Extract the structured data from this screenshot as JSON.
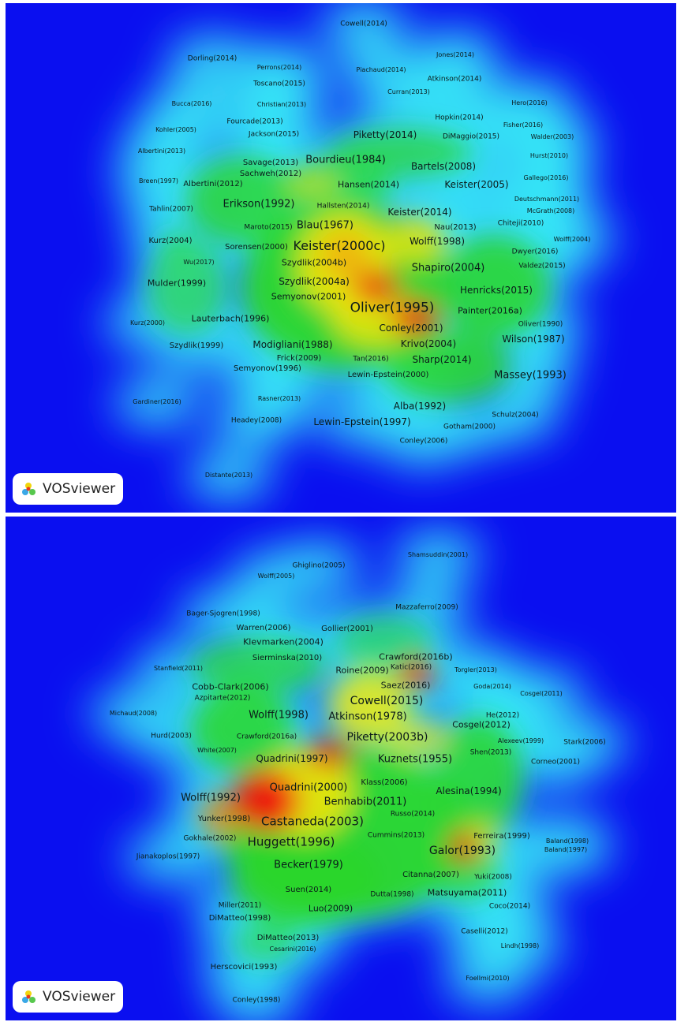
{
  "brand": {
    "name": "VOSviewer",
    "icon": "vosviewer-logo-icon"
  },
  "colors": {
    "background": "#0a0ff0",
    "cyan": "#36e6f6",
    "green": "#2bd62b",
    "yellow": "#f1e60c",
    "red": "#f0140a"
  },
  "panels": [
    {
      "id": "top",
      "blobs": [
        [
          430,
          360,
          260,
          210,
          "#2bd62b",
          0.95
        ],
        [
          300,
          250,
          140,
          110,
          "#2bd62b",
          0.8
        ],
        [
          620,
          360,
          140,
          130,
          "#2bd62b",
          0.85
        ],
        [
          500,
          190,
          180,
          60,
          "#2bd62b",
          0.7
        ],
        [
          560,
          460,
          160,
          90,
          "#2bd62b",
          0.85
        ],
        [
          230,
          360,
          100,
          120,
          "#2bd62b",
          0.6
        ],
        [
          420,
          230,
          140,
          70,
          "#2bd62b",
          0.7
        ],
        [
          430,
          330,
          120,
          130,
          "#f1e60c",
          0.9
        ],
        [
          520,
          300,
          80,
          60,
          "#f1e60c",
          0.8
        ],
        [
          470,
          400,
          110,
          70,
          "#f1e60c",
          0.85
        ],
        [
          390,
          230,
          70,
          35,
          "#f1e60c",
          0.6
        ],
        [
          520,
          400,
          60,
          45,
          "#f0140a",
          0.85
        ],
        [
          470,
          360,
          60,
          45,
          "#f0140a",
          0.7
        ],
        [
          430,
          320,
          60,
          60,
          "#ff8a0a",
          0.5
        ],
        [
          215,
          305,
          40,
          40,
          "#2bd62b",
          0.4
        ]
      ],
      "labels": [
        [
          "Cowell(2014)",
          454,
          27,
          9
        ],
        [
          "Jones(2014)",
          570,
          66,
          8
        ],
        [
          "Dorling(2014)",
          262,
          71,
          9
        ],
        [
          "Perrons(2014)",
          347,
          82,
          8
        ],
        [
          "Piachaud(2014)",
          476,
          85,
          8
        ],
        [
          "Atkinson(2014)",
          569,
          97,
          9
        ],
        [
          "Toscano(2015)",
          347,
          103,
          9
        ],
        [
          "Curran(2013)",
          511,
          113,
          8
        ],
        [
          "Bucca(2016)",
          236,
          128,
          8
        ],
        [
          "Christian(2013)",
          350,
          129,
          8
        ],
        [
          "Hero(2016)",
          664,
          127,
          8
        ],
        [
          "Hopkin(2014)",
          575,
          146,
          9
        ],
        [
          "Fourcade(2013)",
          316,
          151,
          9
        ],
        [
          "Fisher(2016)",
          656,
          155,
          8
        ],
        [
          "Kohler(2005)",
          216,
          161,
          8
        ],
        [
          "Jackson(2015)",
          340,
          167,
          9
        ],
        [
          "Piketty(2014)",
          481,
          167,
          12
        ],
        [
          "DiMaggio(2015)",
          590,
          170,
          9
        ],
        [
          "Walder(2003)",
          693,
          170,
          8
        ],
        [
          "Albertini(2013)",
          198,
          188,
          8
        ],
        [
          "Savage(2013)",
          336,
          203,
          10
        ],
        [
          "Bourdieu(1984)",
          431,
          199,
          13
        ],
        [
          "Hurst(2010)",
          689,
          194,
          8
        ],
        [
          "Bartels(2008)",
          555,
          207,
          12
        ],
        [
          "Sachweh(2012)",
          336,
          217,
          10
        ],
        [
          "Gallego(2016)",
          685,
          222,
          8
        ],
        [
          "Breen(1997)",
          194,
          226,
          8
        ],
        [
          "Albertini(2012)",
          263,
          230,
          10
        ],
        [
          "Hansen(2014)",
          460,
          230,
          11
        ],
        [
          "Keister(2005)",
          597,
          230,
          12
        ],
        [
          "Deutschmann(2011)",
          686,
          249,
          8
        ],
        [
          "Erikson(1992)",
          321,
          255,
          13
        ],
        [
          "Hallsten(2014)",
          428,
          258,
          9
        ],
        [
          "Keister(2014)",
          525,
          265,
          12
        ],
        [
          "Tahlin(2007)",
          210,
          262,
          9
        ],
        [
          "McGrath(2008)",
          691,
          264,
          8
        ],
        [
          "Blau(1967)",
          405,
          282,
          13
        ],
        [
          "Chiteji(2010)",
          653,
          280,
          9
        ],
        [
          "Nau(2013)",
          570,
          285,
          10
        ],
        [
          "Maroto(2015)",
          333,
          285,
          9
        ],
        [
          "Wolff(1998)",
          547,
          302,
          12
        ],
        [
          "Kurz(2004)",
          209,
          302,
          10
        ],
        [
          "Wolff(2004)",
          718,
          300,
          8
        ],
        [
          "Keister(2000c)",
          423,
          308,
          16
        ],
        [
          "Sorensen(2000)",
          318,
          310,
          10
        ],
        [
          "Dwyer(2016)",
          671,
          316,
          9
        ],
        [
          "Wu(2017)",
          245,
          329,
          8
        ],
        [
          "Szydlik(2004b)",
          391,
          329,
          11
        ],
        [
          "Valdez(2015)",
          680,
          334,
          9
        ],
        [
          "Shapiro(2004)",
          561,
          336,
          13
        ],
        [
          "Mulder(1999)",
          217,
          355,
          11
        ],
        [
          "Szydlik(2004a)",
          391,
          353,
          12
        ],
        [
          "Henricks(2015)",
          622,
          364,
          12
        ],
        [
          "Semyonov(2001)",
          384,
          372,
          11
        ],
        [
          "Oliver(1995)",
          490,
          387,
          17
        ],
        [
          "Painter(2016a)",
          614,
          390,
          11
        ],
        [
          "Lauterbach(1996)",
          285,
          400,
          11
        ],
        [
          "Kurz(2000)",
          180,
          406,
          8
        ],
        [
          "Oliver(1990)",
          678,
          408,
          9
        ],
        [
          "Conley(2001)",
          514,
          412,
          12
        ],
        [
          "Szydlik(1999)",
          242,
          435,
          10
        ],
        [
          "Modigliani(1988)",
          364,
          433,
          12
        ],
        [
          "Krivo(2004)",
          536,
          432,
          12
        ],
        [
          "Wilson(1987)",
          669,
          426,
          12
        ],
        [
          "Frick(2009)",
          372,
          451,
          10
        ],
        [
          "Tan(2016)",
          463,
          452,
          9
        ],
        [
          "Sharp(2014)",
          553,
          452,
          12
        ],
        [
          "Semyonov(1996)",
          332,
          464,
          10
        ],
        [
          "Lewin-Epstein(2000)",
          485,
          472,
          10
        ],
        [
          "Massey(1993)",
          665,
          472,
          13
        ],
        [
          "Rasner(2013)",
          347,
          502,
          8
        ],
        [
          "Gardiner(2016)",
          192,
          506,
          8
        ],
        [
          "Alba(1992)",
          525,
          511,
          12
        ],
        [
          "Schulz(2004)",
          646,
          523,
          9
        ],
        [
          "Headey(2008)",
          318,
          530,
          9
        ],
        [
          "Lewin-Epstein(1997)",
          452,
          531,
          12
        ],
        [
          "Gotham(2000)",
          588,
          538,
          9
        ],
        [
          "Conley(2006)",
          530,
          556,
          9
        ],
        [
          "Distante(2013)",
          283,
          599,
          8
        ]
      ]
    },
    {
      "id": "bottom",
      "blobs": [
        [
          430,
          400,
          310,
          220,
          "#2bd62b",
          0.95
        ],
        [
          320,
          190,
          170,
          70,
          "#2bd62b",
          0.7
        ],
        [
          480,
          160,
          120,
          70,
          "#2bd62b",
          0.55
        ],
        [
          300,
          270,
          130,
          110,
          "#2bd62b",
          0.85
        ],
        [
          600,
          330,
          110,
          150,
          "#2bd62b",
          0.85
        ],
        [
          380,
          460,
          190,
          120,
          "#2bd62b",
          0.9
        ],
        [
          330,
          540,
          80,
          50,
          "#2bd62b",
          0.6
        ],
        [
          580,
          450,
          90,
          70,
          "#2bd62b",
          0.75
        ],
        [
          380,
          350,
          120,
          110,
          "#f1e60c",
          0.9
        ],
        [
          460,
          240,
          100,
          90,
          "#f1e60c",
          0.85
        ],
        [
          520,
          280,
          80,
          50,
          "#f1e60c",
          0.7
        ],
        [
          600,
          410,
          50,
          45,
          "#f1e60c",
          0.7
        ],
        [
          330,
          360,
          85,
          80,
          "#f0140a",
          0.95
        ],
        [
          410,
          300,
          60,
          40,
          "#f0140a",
          0.75
        ],
        [
          520,
          200,
          50,
          40,
          "#f0140a",
          0.85
        ],
        [
          580,
          420,
          40,
          40,
          "#f0140a",
          0.8
        ],
        [
          270,
          380,
          50,
          60,
          "#ff7a08",
          0.7
        ]
      ],
      "labels": [
        [
          "Shamsuddin(2001)",
          548,
          49,
          8
        ],
        [
          "Ghiglino(2005)",
          397,
          63,
          9
        ],
        [
          "Wolff(2005)",
          343,
          76,
          8
        ],
        [
          "Mazzaferro(2009)",
          534,
          116,
          9
        ],
        [
          "Bager-Sjogren(1998)",
          276,
          124,
          9
        ],
        [
          "Warren(2006)",
          327,
          142,
          10
        ],
        [
          "Gollier(2001)",
          433,
          143,
          10
        ],
        [
          "Klevmarken(2004)",
          352,
          159,
          11
        ],
        [
          "Sierminska(2010)",
          357,
          180,
          10
        ],
        [
          "Crawford(2016b)",
          520,
          178,
          11
        ],
        [
          "Stanfield(2011)",
          219,
          193,
          8
        ],
        [
          "Roine(2009)",
          452,
          195,
          11
        ],
        [
          "Katic(2016)",
          514,
          192,
          9
        ],
        [
          "Torgler(2013)",
          596,
          195,
          8
        ],
        [
          "Saez(2016)",
          507,
          214,
          11
        ],
        [
          "Cobb-Clark(2006)",
          285,
          216,
          11
        ],
        [
          "Goda(2014)",
          617,
          216,
          8
        ],
        [
          "Cosgel(2011)",
          679,
          225,
          8
        ],
        [
          "Azpitarte(2012)",
          275,
          231,
          9
        ],
        [
          "Cowell(2015)",
          483,
          234,
          14
        ],
        [
          "Michaud(2008)",
          162,
          250,
          8
        ],
        [
          "Wolff(1998)",
          346,
          252,
          13
        ],
        [
          "Atkinson(1978)",
          459,
          254,
          13
        ],
        [
          "He(2012)",
          630,
          253,
          9
        ],
        [
          "Cosgel(2012)",
          603,
          264,
          11
        ],
        [
          "Hurd(2003)",
          210,
          279,
          9
        ],
        [
          "Piketty(2003b)",
          484,
          280,
          14
        ],
        [
          "Crawford(2016a)",
          331,
          280,
          9
        ],
        [
          "Alexeev(1999)",
          653,
          285,
          8
        ],
        [
          "Stark(2006)",
          734,
          287,
          9
        ],
        [
          "White(2007)",
          268,
          297,
          8
        ],
        [
          "Shen(2013)",
          615,
          300,
          9
        ],
        [
          "Quadrini(1997)",
          363,
          307,
          12
        ],
        [
          "Kuznets(1955)",
          519,
          308,
          13
        ],
        [
          "Corneo(2001)",
          697,
          312,
          9
        ],
        [
          "Quadrini(2000)",
          384,
          344,
          13
        ],
        [
          "Klass(2006)",
          480,
          338,
          10
        ],
        [
          "Alesina(1994)",
          587,
          348,
          12
        ],
        [
          "Wolff(1992)",
          260,
          357,
          13
        ],
        [
          "Benhabib(2011)",
          456,
          362,
          13
        ],
        [
          "Yunker(1998)",
          277,
          384,
          10
        ],
        [
          "Castaneda(2003)",
          389,
          387,
          15
        ],
        [
          "Russo(2014)",
          516,
          378,
          9
        ],
        [
          "Cummins(2013)",
          495,
          405,
          9
        ],
        [
          "Ferreira(1999)",
          629,
          406,
          10
        ],
        [
          "Gokhale(2002)",
          259,
          409,
          9
        ],
        [
          "Huggett(1996)",
          362,
          413,
          15
        ],
        [
          "Baland(1998)",
          712,
          412,
          8
        ],
        [
          "Baland(1997)",
          710,
          423,
          8
        ],
        [
          "Galor(1993)",
          579,
          424,
          14
        ],
        [
          "Jianakoplos(1997)",
          206,
          432,
          9
        ],
        [
          "Becker(1979)",
          384,
          442,
          13
        ],
        [
          "Citanna(2007)",
          539,
          455,
          10
        ],
        [
          "Yuki(2008)",
          618,
          458,
          9
        ],
        [
          "Suen(2014)",
          384,
          474,
          10
        ],
        [
          "Dutta(1998)",
          490,
          480,
          9
        ],
        [
          "Matsuyama(2011)",
          585,
          477,
          11
        ],
        [
          "Miller(2011)",
          297,
          494,
          9
        ],
        [
          "Luo(2009)",
          412,
          497,
          11
        ],
        [
          "Coco(2014)",
          639,
          495,
          9
        ],
        [
          "DiMatteo(1998)",
          297,
          510,
          10
        ],
        [
          "Caselli(2012)",
          607,
          527,
          9
        ],
        [
          "DiMatteo(2013)",
          358,
          535,
          10
        ],
        [
          "Cesarini(2016)",
          364,
          549,
          8
        ],
        [
          "Lindh(1998)",
          652,
          545,
          8
        ],
        [
          "Herscovici(1993)",
          302,
          572,
          10
        ],
        [
          "Foellmi(2010)",
          611,
          586,
          8
        ],
        [
          "Conley(1998)",
          318,
          614,
          9
        ]
      ]
    }
  ]
}
